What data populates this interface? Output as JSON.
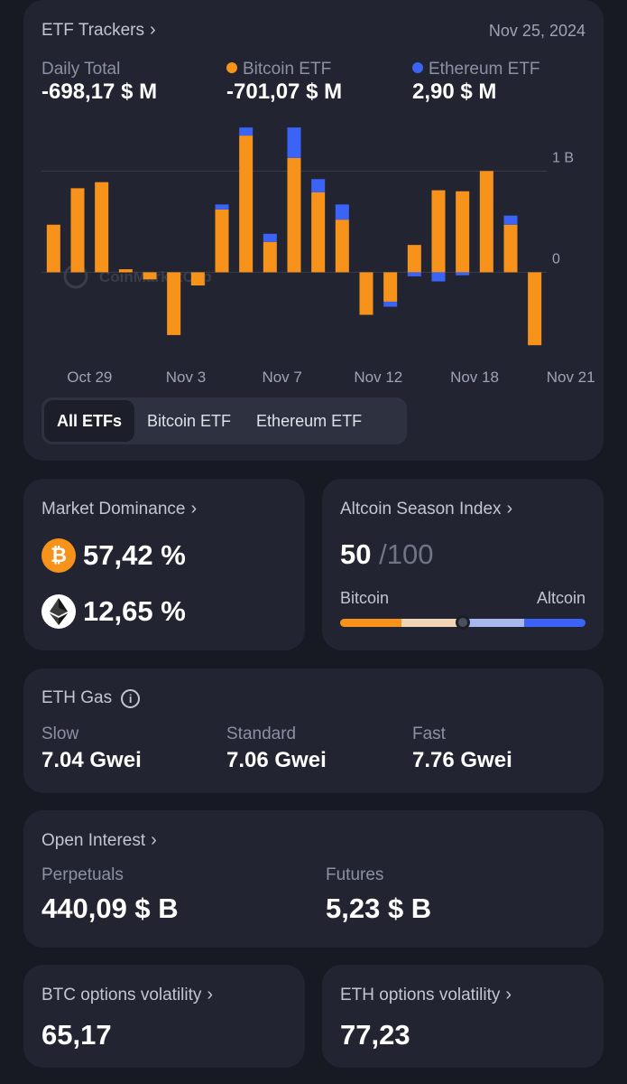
{
  "etf": {
    "title": "ETF Trackers",
    "date": "Nov 25, 2024",
    "daily_total_label": "Daily Total",
    "daily_total_value": "-698,17 $ M",
    "btc_label": "Bitcoin ETF",
    "btc_value": "-701,07 $ M",
    "eth_label": "Ethereum ETF",
    "eth_value": "2,90 $ M",
    "watermark": "CoinMarketCap",
    "tabs": [
      "All ETFs",
      "Bitcoin ETF",
      "Ethereum ETF"
    ],
    "active_tab": 0
  },
  "chart_data": {
    "type": "bar",
    "stacked": true,
    "y_ticks": [
      {
        "value": 1000,
        "label": "1 B"
      },
      {
        "value": 0,
        "label": "0"
      }
    ],
    "ylim": [
      -790,
      1440
    ],
    "x_labels": [
      "Oct 29",
      "Nov 3",
      "Nov 7",
      "Nov 12",
      "Nov 18",
      "Nov 21"
    ],
    "x_label_positions": [
      1.5,
      5.5,
      9.5,
      13.5,
      17.5,
      21.5
    ],
    "colors": {
      "btc": "#f7931a",
      "eth": "#3b63f6"
    },
    "series": [
      {
        "name": "Bitcoin ETF",
        "values": [
          470,
          830,
          890,
          30,
          -70,
          -620,
          -130,
          620,
          1350,
          300,
          1130,
          790,
          520,
          -420,
          -290,
          270,
          810,
          800,
          1000,
          470,
          -720
        ]
      },
      {
        "name": "Ethereum ETF",
        "values": [
          0,
          0,
          0,
          0,
          0,
          0,
          0,
          50,
          80,
          80,
          300,
          130,
          150,
          0,
          -50,
          -40,
          -90,
          -30,
          0,
          90,
          0
        ]
      }
    ]
  },
  "dominance": {
    "title": "Market Dominance",
    "btc_value": "57,42 %",
    "eth_value": "12,65 %",
    "btc_symbol": "₿"
  },
  "altcoin": {
    "title": "Altcoin Season Index",
    "value": "50",
    "max": "/100",
    "left_label": "Bitcoin",
    "right_label": "Altcoin",
    "index_value": 50
  },
  "gas": {
    "title": "ETH Gas",
    "info_symbol": "i",
    "items": [
      {
        "label": "Slow",
        "value": "7.04 Gwei"
      },
      {
        "label": "Standard",
        "value": "7.06 Gwei"
      },
      {
        "label": "Fast",
        "value": "7.76 Gwei"
      }
    ]
  },
  "open_interest": {
    "title": "Open Interest",
    "items": [
      {
        "label": "Perpetuals",
        "value": "440,09 $ B"
      },
      {
        "label": "Futures",
        "value": "5,23 $ B"
      }
    ]
  },
  "btc_vol": {
    "title": "BTC options volatility",
    "value": "65,17"
  },
  "eth_vol": {
    "title": "ETH options volatility",
    "value": "77,23"
  }
}
